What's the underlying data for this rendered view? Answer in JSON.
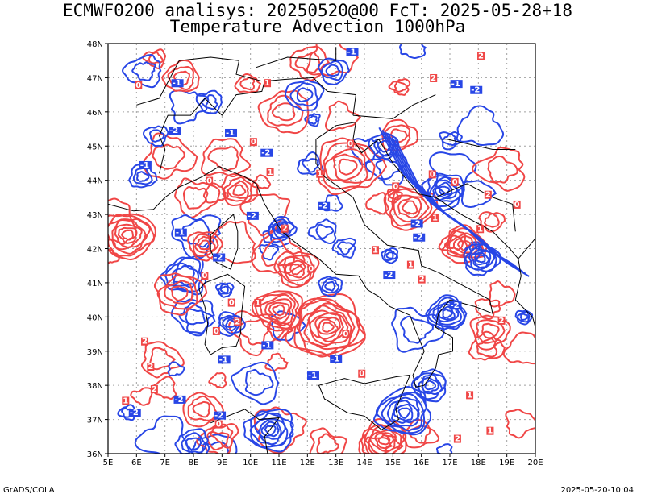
{
  "title_line1": "ECMWF0200 analisys: 20250520@00 FcT: 2025-05-28+18",
  "title_line2": "Temperature Advection 1000hPa",
  "footer_left": "GrADS/COLA",
  "footer_right": "2025-05-20-10:04",
  "map": {
    "lon_range": [
      5,
      20
    ],
    "lat_range": [
      36,
      48
    ],
    "lon_ticks": [
      "5E",
      "6E",
      "7E",
      "8E",
      "9E",
      "10E",
      "11E",
      "12E",
      "13E",
      "14E",
      "15E",
      "16E",
      "17E",
      "18E",
      "19E",
      "20E"
    ],
    "lat_ticks": [
      "36N",
      "37N",
      "38N",
      "39N",
      "40N",
      "41N",
      "42N",
      "43N",
      "44N",
      "45N",
      "46N",
      "47N",
      "48N"
    ],
    "grid": true,
    "colors": {
      "positive": "#f04646",
      "negative": "#2846e6",
      "label": "#ffffff",
      "coast": "#000000",
      "grid": "#a0a0a0"
    },
    "contour_labels": [
      "-1",
      "-2",
      "1",
      "2",
      "0"
    ]
  }
}
